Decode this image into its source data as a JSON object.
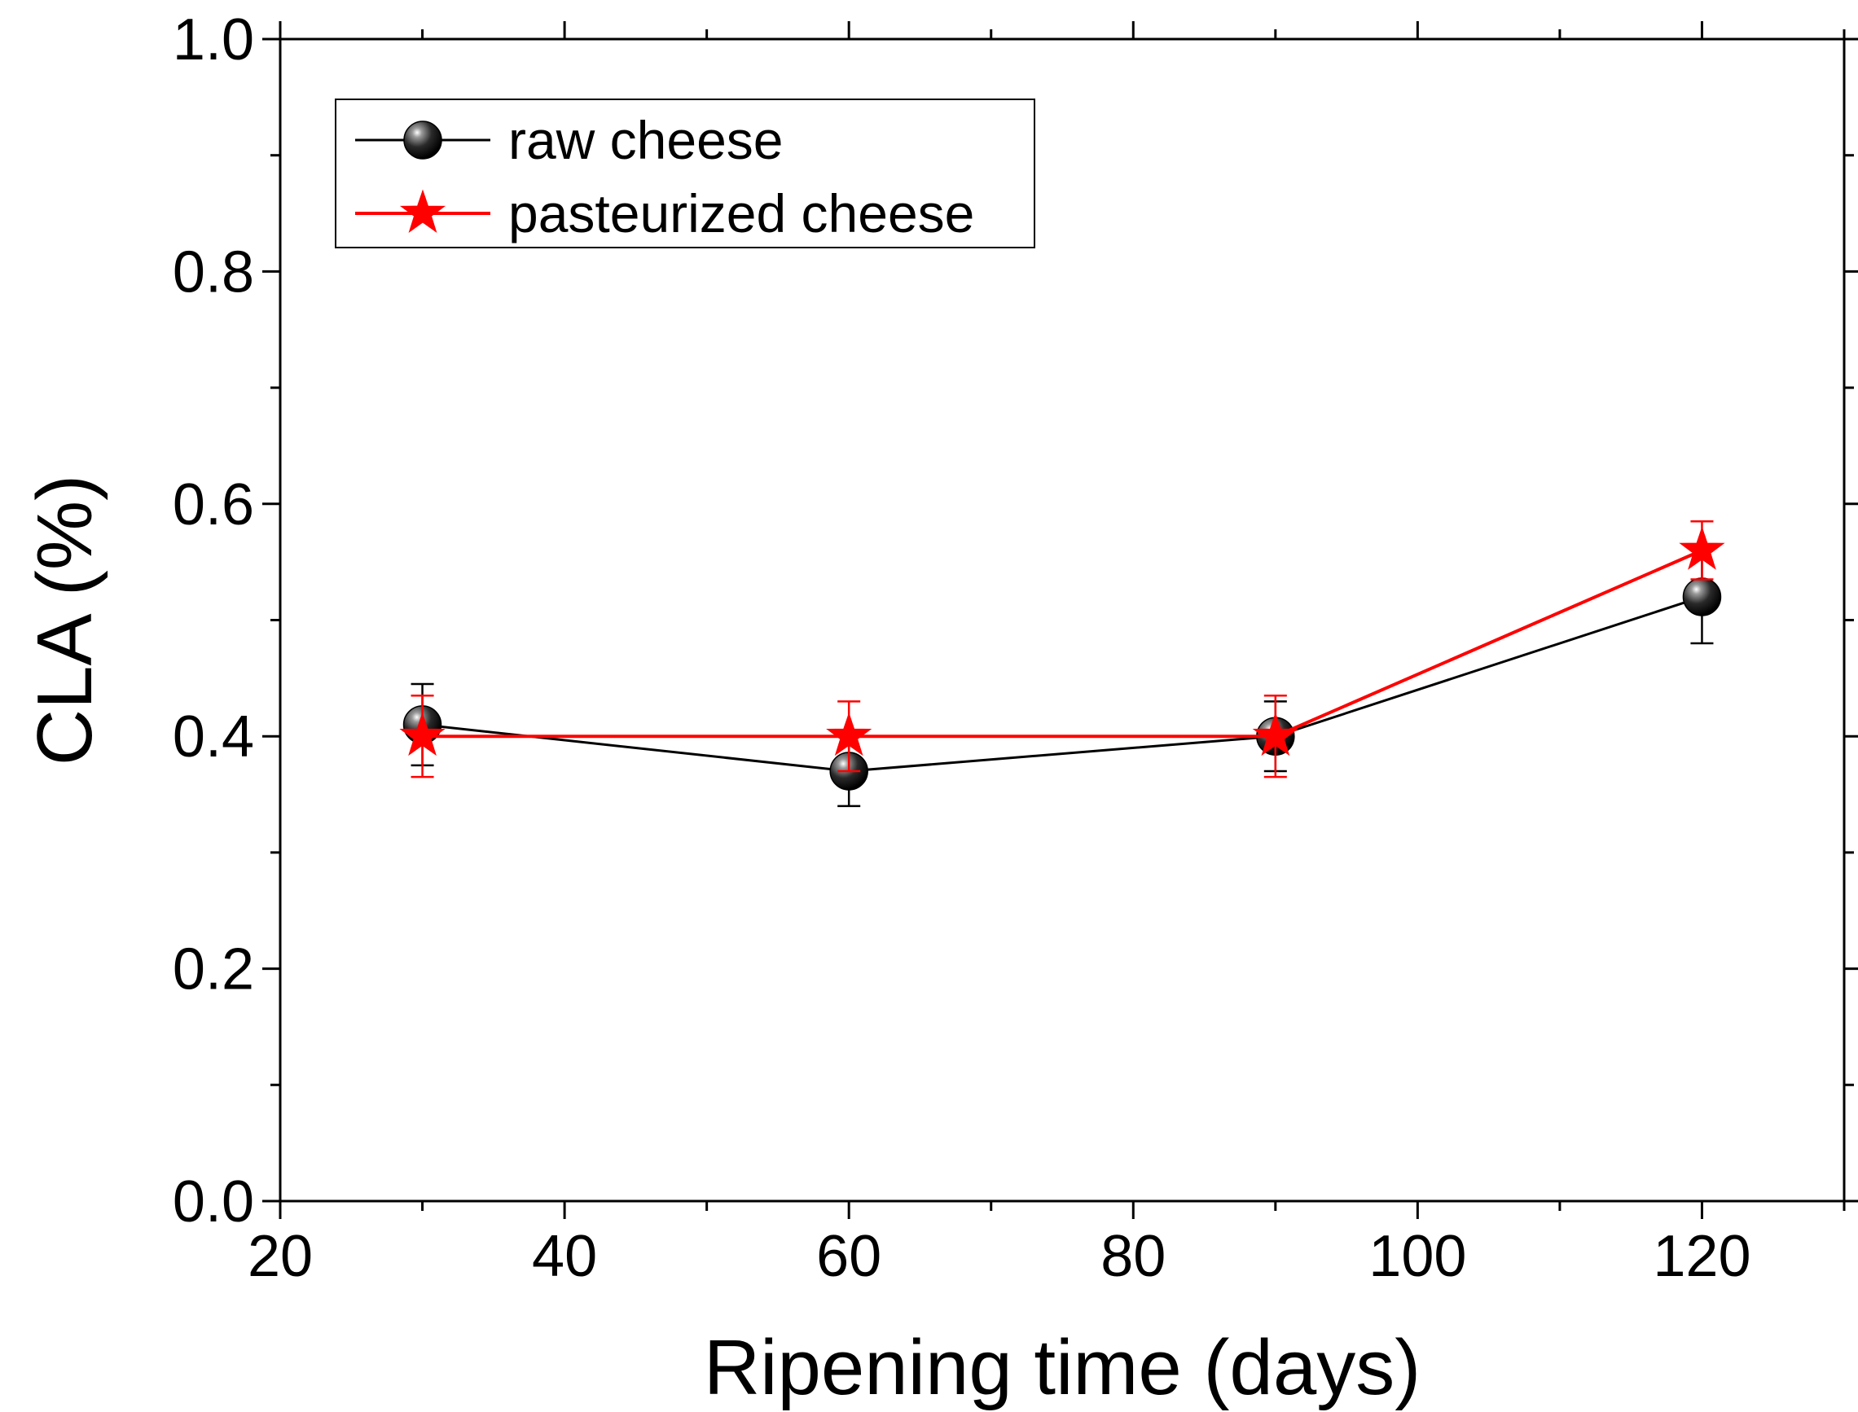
{
  "chart_data": {
    "type": "line",
    "title": "",
    "xlabel": "Ripening time (days)",
    "ylabel": "CLA (%)",
    "xlim": [
      20,
      130
    ],
    "ylim": [
      0.0,
      1.0
    ],
    "x_ticks": [
      "20",
      "40",
      "60",
      "80",
      "100",
      "120"
    ],
    "x_tick_values": [
      20,
      40,
      60,
      80,
      100,
      120
    ],
    "y_ticks": [
      "0.0",
      "0.2",
      "0.4",
      "0.6",
      "0.8",
      "1.0"
    ],
    "y_tick_values": [
      0.0,
      0.2,
      0.4,
      0.6,
      0.8,
      1.0
    ],
    "x": [
      30,
      60,
      90,
      120
    ],
    "series": [
      {
        "name": "raw cheese",
        "color": "#000000",
        "marker": "sphere",
        "values": [
          0.41,
          0.37,
          0.4,
          0.52
        ],
        "errors": [
          0.035,
          0.03,
          0.03,
          0.04
        ]
      },
      {
        "name": "pasteurized cheese",
        "color": "#ff0000",
        "marker": "star",
        "values": [
          0.4,
          0.4,
          0.4,
          0.56
        ],
        "errors": [
          0.035,
          0.03,
          0.035,
          0.025
        ]
      }
    ],
    "legend_position": "top-left",
    "grid": false
  }
}
